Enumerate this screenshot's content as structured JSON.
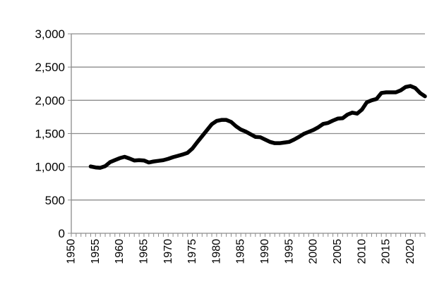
{
  "chart_data": {
    "type": "line",
    "title": "",
    "xlabel": "",
    "ylabel": "",
    "xlim": [
      1950,
      2023
    ],
    "ylim": [
      0,
      3000
    ],
    "grid": true,
    "legend": "none",
    "y_ticks": [
      0,
      500,
      1000,
      1500,
      2000,
      2500,
      3000
    ],
    "y_tick_labels": [
      "0",
      "500",
      "1,000",
      "1,500",
      "2,000",
      "2,500",
      "3,000"
    ],
    "x_ticks": [
      1950,
      1955,
      1960,
      1965,
      1970,
      1975,
      1980,
      1985,
      1990,
      1995,
      2000,
      2005,
      2010,
      2015,
      2020
    ],
    "x_tick_labels": [
      "1950",
      "1955",
      "1960",
      "1965",
      "1970",
      "1975",
      "1980",
      "1985",
      "1990",
      "1995",
      "2000",
      "2005",
      "2010",
      "2015",
      "2020"
    ],
    "series": [
      {
        "color": "#000000",
        "x": [
          1954,
          1955,
          1956,
          1957,
          1958,
          1959,
          1960,
          1961,
          1962,
          1963,
          1964,
          1965,
          1966,
          1967,
          1968,
          1969,
          1970,
          1971,
          1972,
          1973,
          1974,
          1975,
          1976,
          1977,
          1978,
          1979,
          1980,
          1981,
          1982,
          1983,
          1984,
          1985,
          1986,
          1987,
          1988,
          1989,
          1990,
          1991,
          1992,
          1993,
          1994,
          1995,
          1996,
          1997,
          1998,
          1999,
          2000,
          2001,
          2002,
          2003,
          2004,
          2005,
          2006,
          2007,
          2008,
          2009,
          2010,
          2011,
          2012,
          2013,
          2014,
          2015,
          2016,
          2017,
          2018,
          2019,
          2020,
          2021,
          2022,
          2023
        ],
        "values": [
          1005,
          990,
          985,
          1010,
          1070,
          1100,
          1130,
          1150,
          1125,
          1095,
          1100,
          1095,
          1065,
          1080,
          1090,
          1100,
          1120,
          1145,
          1165,
          1185,
          1210,
          1275,
          1370,
          1460,
          1550,
          1640,
          1690,
          1705,
          1705,
          1675,
          1610,
          1560,
          1530,
          1490,
          1450,
          1445,
          1410,
          1375,
          1355,
          1355,
          1365,
          1375,
          1410,
          1450,
          1495,
          1525,
          1555,
          1595,
          1645,
          1660,
          1695,
          1725,
          1730,
          1785,
          1815,
          1800,
          1860,
          1970,
          2000,
          2020,
          2110,
          2120,
          2120,
          2120,
          2150,
          2200,
          2215,
          2185,
          2110,
          2060
        ]
      }
    ]
  }
}
